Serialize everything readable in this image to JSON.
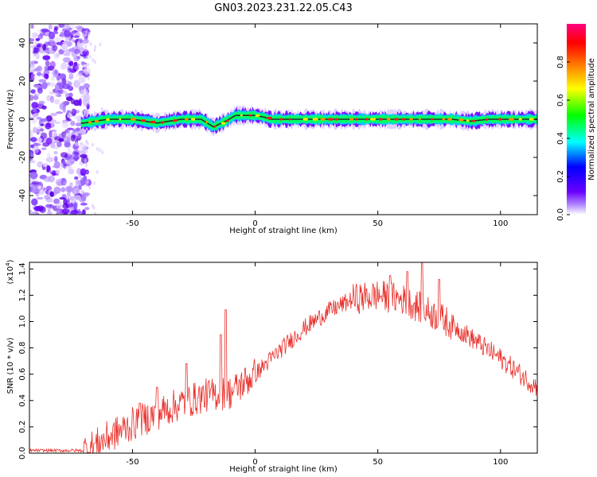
{
  "figure": {
    "title": "GN03.2023.231.22.05.C43"
  },
  "chart_data": [
    {
      "type": "heatmap",
      "xlabel": "Height of straight line (km)",
      "ylabel": "Frequency (Hz)",
      "xlim": [
        -92,
        115
      ],
      "ylim": [
        -50,
        50
      ],
      "xticks": [
        -50,
        0,
        50,
        100
      ],
      "yticks": [
        -40,
        -20,
        0,
        20,
        40
      ],
      "xtick_labels": [
        "-50",
        "0",
        "50",
        "100"
      ],
      "ytick_labels": [
        "-40",
        "-20",
        "0",
        "20",
        "40"
      ],
      "ridge": [
        {
          "x": -70,
          "y": -2
        },
        {
          "x": -60,
          "y": 0
        },
        {
          "x": -50,
          "y": 0
        },
        {
          "x": -40,
          "y": -2
        },
        {
          "x": -35,
          "y": -1
        },
        {
          "x": -30,
          "y": 0
        },
        {
          "x": -22,
          "y": 0
        },
        {
          "x": -17,
          "y": -4
        },
        {
          "x": -12,
          "y": -1
        },
        {
          "x": -8,
          "y": 2
        },
        {
          "x": 0,
          "y": 2
        },
        {
          "x": 4,
          "y": 1
        },
        {
          "x": 6,
          "y": 0
        },
        {
          "x": 30,
          "y": 0
        },
        {
          "x": 55,
          "y": 0
        },
        {
          "x": 80,
          "y": 0
        },
        {
          "x": 88,
          "y": -1
        },
        {
          "x": 95,
          "y": 0
        },
        {
          "x": 115,
          "y": 0
        }
      ],
      "noise_region_x": [
        -92,
        -70
      ],
      "colorbar": {
        "label": "Normalized spectral amplitude",
        "range": [
          0.0,
          1.0
        ],
        "ticks": [
          0.0,
          0.2,
          0.4,
          0.6,
          0.8
        ],
        "tick_labels": [
          "0.0",
          "0.2",
          "0.4",
          "0.6",
          "0.8"
        ],
        "colormap": [
          "#ffffff",
          "#6a00ff",
          "#0000ff",
          "#00ffff",
          "#00ff00",
          "#ffff00",
          "#ff7f00",
          "#ff0000",
          "#ff0080"
        ]
      }
    },
    {
      "type": "line",
      "xlabel": "Height of straight line (km)",
      "ylabel": "SNR (10 * v/v)",
      "ylabel_scale": "(x10",
      "ylabel_exponent": "4",
      "ylabel_scale_close": ")",
      "xlim": [
        -92,
        115
      ],
      "ylim": [
        0,
        1.45
      ],
      "xticks": [
        -50,
        0,
        50,
        100
      ],
      "yticks": [
        0.0,
        0.2,
        0.4,
        0.6,
        0.8,
        1.0,
        1.2,
        1.4
      ],
      "xtick_labels": [
        "-50",
        "0",
        "50",
        "100"
      ],
      "ytick_labels": [
        "0.0",
        "0.2",
        "0.4",
        "0.6",
        "0.8",
        "1.0",
        "1.2",
        "1.4"
      ],
      "line_color": "#e8302b",
      "envelope": [
        {
          "x": -92,
          "y": 0.02
        },
        {
          "x": -70,
          "y": 0.02
        },
        {
          "x": -65,
          "y": 0.06
        },
        {
          "x": -60,
          "y": 0.12
        },
        {
          "x": -50,
          "y": 0.22
        },
        {
          "x": -40,
          "y": 0.3
        },
        {
          "x": -30,
          "y": 0.38
        },
        {
          "x": -20,
          "y": 0.44
        },
        {
          "x": -10,
          "y": 0.46
        },
        {
          "x": 0,
          "y": 0.6
        },
        {
          "x": 10,
          "y": 0.78
        },
        {
          "x": 20,
          "y": 0.95
        },
        {
          "x": 30,
          "y": 1.08
        },
        {
          "x": 40,
          "y": 1.17
        },
        {
          "x": 50,
          "y": 1.2
        },
        {
          "x": 60,
          "y": 1.17
        },
        {
          "x": 70,
          "y": 1.08
        },
        {
          "x": 80,
          "y": 0.98
        },
        {
          "x": 90,
          "y": 0.85
        },
        {
          "x": 100,
          "y": 0.72
        },
        {
          "x": 110,
          "y": 0.57
        },
        {
          "x": 115,
          "y": 0.5
        }
      ],
      "spikes": [
        {
          "x": -47,
          "y": 0.38
        },
        {
          "x": -40,
          "y": 0.5
        },
        {
          "x": -28,
          "y": 0.68
        },
        {
          "x": -14,
          "y": 0.9
        },
        {
          "x": -12,
          "y": 1.09
        },
        {
          "x": 55,
          "y": 1.35
        },
        {
          "x": 62,
          "y": 1.38
        },
        {
          "x": 68,
          "y": 1.45
        },
        {
          "x": 75,
          "y": 1.32
        }
      ]
    }
  ]
}
